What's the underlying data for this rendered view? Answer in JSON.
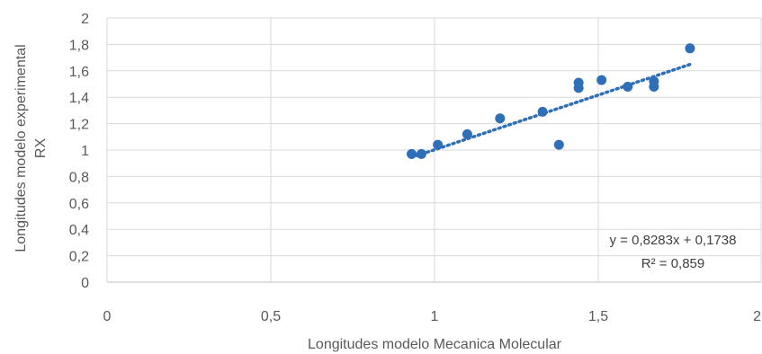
{
  "chart_data": {
    "type": "scatter",
    "title": "",
    "xlabel": "Longitudes modelo Mecanica Molecular",
    "ylabel_lines": [
      "Longitudes modelo experimental",
      "RX"
    ],
    "xlim": [
      0,
      2
    ],
    "ylim": [
      0,
      2
    ],
    "x_ticks": [
      "0",
      "0,5",
      "1",
      "1,5",
      "2"
    ],
    "y_ticks": [
      "0",
      "0,2",
      "0,4",
      "0,6",
      "0,8",
      "1",
      "1,2",
      "1,4",
      "1,6",
      "1,8",
      "2"
    ],
    "x_tick_values": [
      0,
      0.5,
      1,
      1.5,
      2
    ],
    "y_tick_values": [
      0,
      0.2,
      0.4,
      0.6,
      0.8,
      1,
      1.2,
      1.4,
      1.6,
      1.8,
      2
    ],
    "grid": true,
    "series": [
      {
        "x": [
          0.93,
          0.96,
          1.01,
          1.1,
          1.2,
          1.33,
          1.38,
          1.44,
          1.44,
          1.51,
          1.59,
          1.67,
          1.67,
          1.78
        ],
        "y": [
          0.97,
          0.97,
          1.04,
          1.12,
          1.24,
          1.29,
          1.04,
          1.51,
          1.47,
          1.53,
          1.48,
          1.52,
          1.48,
          1.77
        ],
        "color": "#2e6fb7"
      }
    ],
    "trendline": {
      "type": "linear",
      "slope": 0.8283,
      "intercept": 0.1738,
      "x_range": [
        0.93,
        1.78
      ],
      "style": "dotted",
      "color": "#2e6fb7",
      "equation_label": "y = 0,8283x + 0,1738",
      "r2_label": "R² = 0,859"
    }
  }
}
